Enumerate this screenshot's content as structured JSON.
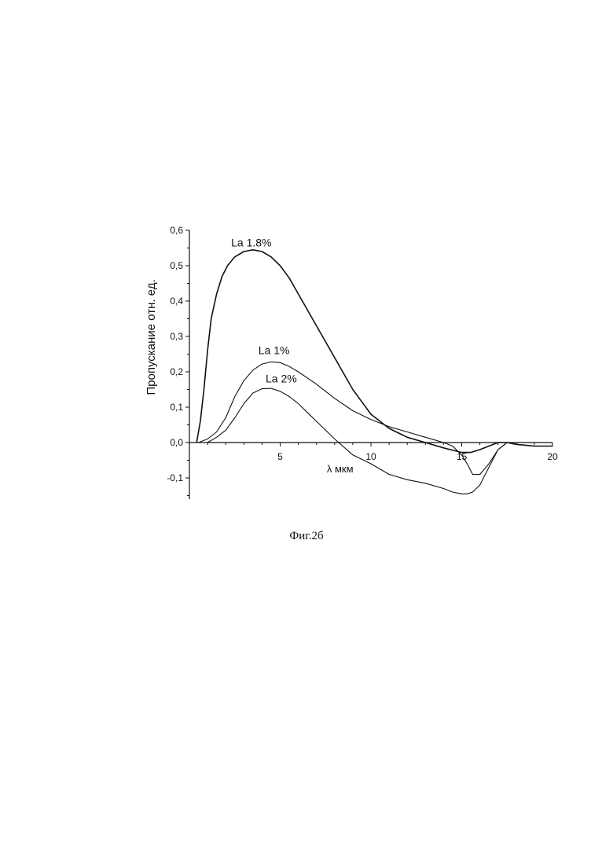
{
  "caption": "Фиг.2б",
  "chart_data": {
    "type": "line",
    "title": "",
    "xlabel": "λ мкм",
    "ylabel": "Пропускание отн. ед.",
    "xlim": [
      0,
      20
    ],
    "ylim": [
      -0.16,
      0.6
    ],
    "x_ticks": [
      {
        "value": 5,
        "label": "5"
      },
      {
        "value": 10,
        "label": "10"
      },
      {
        "value": 15,
        "label": "15"
      },
      {
        "value": 20,
        "label": "20"
      }
    ],
    "y_ticks": [
      {
        "value": 0.6,
        "label": "0,6"
      },
      {
        "value": 0.5,
        "label": "0,5"
      },
      {
        "value": 0.4,
        "label": "0,4"
      },
      {
        "value": 0.3,
        "label": "0,3"
      },
      {
        "value": 0.2,
        "label": "0,2"
      },
      {
        "value": 0.1,
        "label": "0,1"
      },
      {
        "value": 0.0,
        "label": "0,0"
      },
      {
        "value": -0.1,
        "label": "-0,1"
      }
    ],
    "grid": false,
    "series": [
      {
        "name": "La 1.8%",
        "color": "#111111",
        "label_at": [
          2.3,
          0.555
        ],
        "x": [
          0.4,
          0.6,
          0.8,
          1.0,
          1.2,
          1.5,
          1.8,
          2.1,
          2.5,
          3.0,
          3.5,
          4.0,
          4.5,
          5.0,
          5.5,
          6.0,
          7.0,
          8.0,
          9.0,
          10.0,
          11.0,
          12.0,
          13.0,
          14.0,
          15.0,
          15.5,
          16.0,
          16.5,
          17.0,
          17.5,
          18.0,
          19.0,
          20.0
        ],
        "values": [
          0.0,
          0.06,
          0.15,
          0.26,
          0.35,
          0.42,
          0.47,
          0.5,
          0.525,
          0.54,
          0.545,
          0.54,
          0.525,
          0.5,
          0.465,
          0.42,
          0.33,
          0.24,
          0.15,
          0.08,
          0.04,
          0.015,
          0.0,
          -0.015,
          -0.028,
          -0.028,
          -0.02,
          -0.01,
          0.0,
          0.0,
          -0.005,
          -0.01,
          -0.01
        ]
      },
      {
        "name": "La 1%",
        "color": "#111111",
        "label_at": [
          3.8,
          0.25
        ],
        "x": [
          0.5,
          1.0,
          1.5,
          2.0,
          2.5,
          3.0,
          3.5,
          4.0,
          4.5,
          5.0,
          5.5,
          6.0,
          7.0,
          8.0,
          9.0,
          10.0,
          11.0,
          12.0,
          13.0,
          14.0,
          14.5,
          15.0,
          15.3,
          15.6,
          16.0,
          16.5,
          17.0,
          17.5,
          18.0,
          19.0,
          20.0
        ],
        "values": [
          0.0,
          0.01,
          0.03,
          0.07,
          0.13,
          0.175,
          0.205,
          0.222,
          0.228,
          0.226,
          0.215,
          0.2,
          0.165,
          0.125,
          0.09,
          0.065,
          0.045,
          0.03,
          0.015,
          0.0,
          -0.01,
          -0.035,
          -0.06,
          -0.09,
          -0.09,
          -0.06,
          -0.02,
          0.0,
          -0.005,
          -0.01,
          -0.01
        ]
      },
      {
        "name": "La 2%",
        "color": "#111111",
        "label_at": [
          4.2,
          0.17
        ],
        "x": [
          0.5,
          1.0,
          1.5,
          2.0,
          2.5,
          3.0,
          3.5,
          4.0,
          4.5,
          5.0,
          5.5,
          6.0,
          6.5,
          7.0,
          8.0,
          9.0,
          10.0,
          11.0,
          12.0,
          13.0,
          14.0,
          14.5,
          15.0,
          15.3,
          15.6,
          16.0,
          16.5,
          17.0,
          17.5,
          18.0,
          19.0,
          20.0
        ],
        "values": [
          0.0,
          0.0,
          0.015,
          0.035,
          0.07,
          0.11,
          0.14,
          0.152,
          0.153,
          0.145,
          0.13,
          0.11,
          0.085,
          0.06,
          0.01,
          -0.035,
          -0.06,
          -0.09,
          -0.105,
          -0.115,
          -0.13,
          -0.14,
          -0.145,
          -0.145,
          -0.14,
          -0.12,
          -0.07,
          -0.02,
          0.0,
          -0.005,
          -0.01,
          -0.01
        ]
      }
    ]
  }
}
